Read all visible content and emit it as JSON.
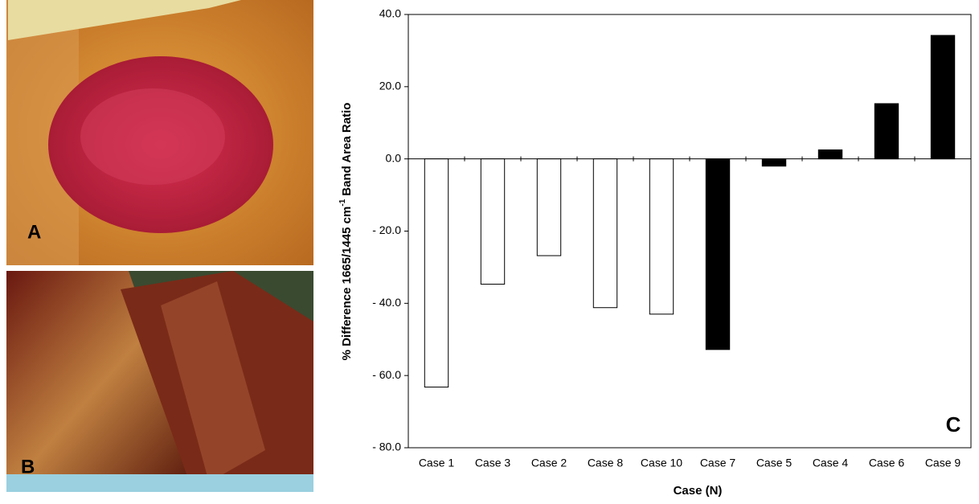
{
  "photo_panels": [
    {
      "label": "A"
    },
    {
      "label": "B"
    }
  ],
  "chart_data": {
    "type": "bar",
    "panel_label": "C",
    "xlabel": "Case (N)",
    "ylabel": {
      "text": "% Difference 1665/1445 cm",
      "superscript": "-1",
      "suffix": "Band Area Ratio"
    },
    "categories": [
      "Case 1",
      "Case 3",
      "Case 2",
      "Case 8",
      "Case 10",
      "Case 7",
      "Case 5",
      "Case 4",
      "Case 6",
      "Case 9"
    ],
    "values": [
      -63.2,
      -34.7,
      -26.8,
      -41.2,
      -43.0,
      -52.8,
      -2.0,
      2.5,
      15.3,
      34.2
    ],
    "colors": [
      "#ffffff",
      "#ffffff",
      "#ffffff",
      "#ffffff",
      "#ffffff",
      "#000000",
      "#000000",
      "#000000",
      "#000000",
      "#000000"
    ],
    "ylim": [
      -80,
      40
    ],
    "yticks": [
      {
        "value": -80,
        "label": "- 80.0"
      },
      {
        "value": -60,
        "label": "- 60.0"
      },
      {
        "value": -40,
        "label": "- 40.0"
      },
      {
        "value": -20,
        "label": "- 20.0"
      },
      {
        "value": 0,
        "label": "0.0"
      },
      {
        "value": 20,
        "label": "20.0"
      },
      {
        "value": 40,
        "label": "40.0"
      }
    ],
    "grid": false
  }
}
